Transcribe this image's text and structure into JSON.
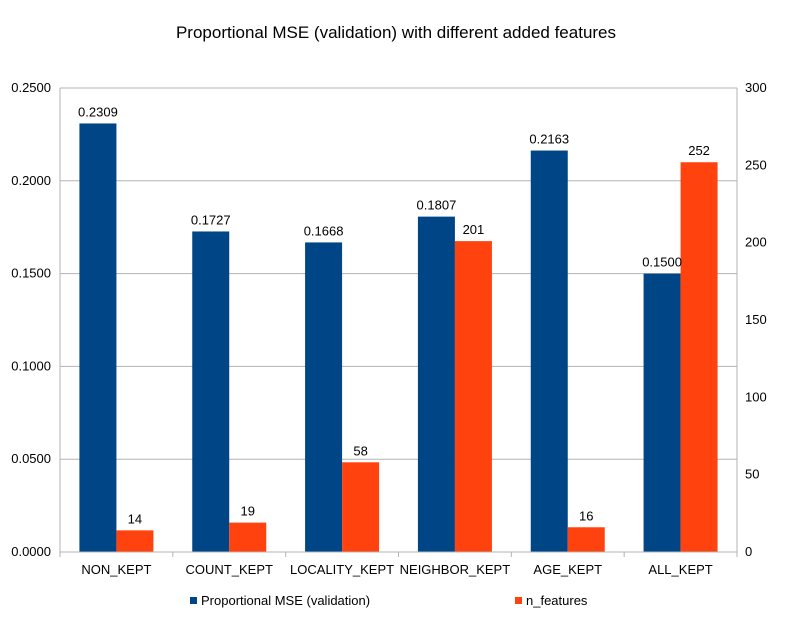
{
  "chart_data": {
    "type": "bar",
    "title": "Proportional MSE (validation) with different added features",
    "categories": [
      "NON_KEPT",
      "COUNT_KEPT",
      "LOCALITY_KEPT",
      "NEIGHBOR_KEPT",
      "AGE_KEPT",
      "ALL_KEPT"
    ],
    "series": [
      {
        "name": "Proportional MSE (validation)",
        "axis": "left",
        "color": "#004586",
        "values": [
          0.2309,
          0.1727,
          0.1668,
          0.1807,
          0.2163,
          0.15
        ],
        "labels": [
          "0.2309",
          "0.1727",
          "0.1668",
          "0.1807",
          "0.2163",
          "0.1500"
        ]
      },
      {
        "name": "n_features",
        "axis": "right",
        "color": "#ff420e",
        "values": [
          14,
          19,
          58,
          201,
          16,
          252
        ],
        "labels": [
          "14",
          "19",
          "58",
          "201",
          "16",
          "252"
        ]
      }
    ],
    "y_left": {
      "range": [
        0,
        0.25
      ],
      "ticks": [
        "0.0000",
        "0.0500",
        "0.1000",
        "0.1500",
        "0.2000",
        "0.2500"
      ]
    },
    "y_right": {
      "range": [
        0,
        300
      ],
      "ticks": [
        "0",
        "50",
        "100",
        "150",
        "200",
        "250",
        "300"
      ]
    },
    "grid": true,
    "legend": "bottom",
    "xlabel": "",
    "ylabel": ""
  }
}
